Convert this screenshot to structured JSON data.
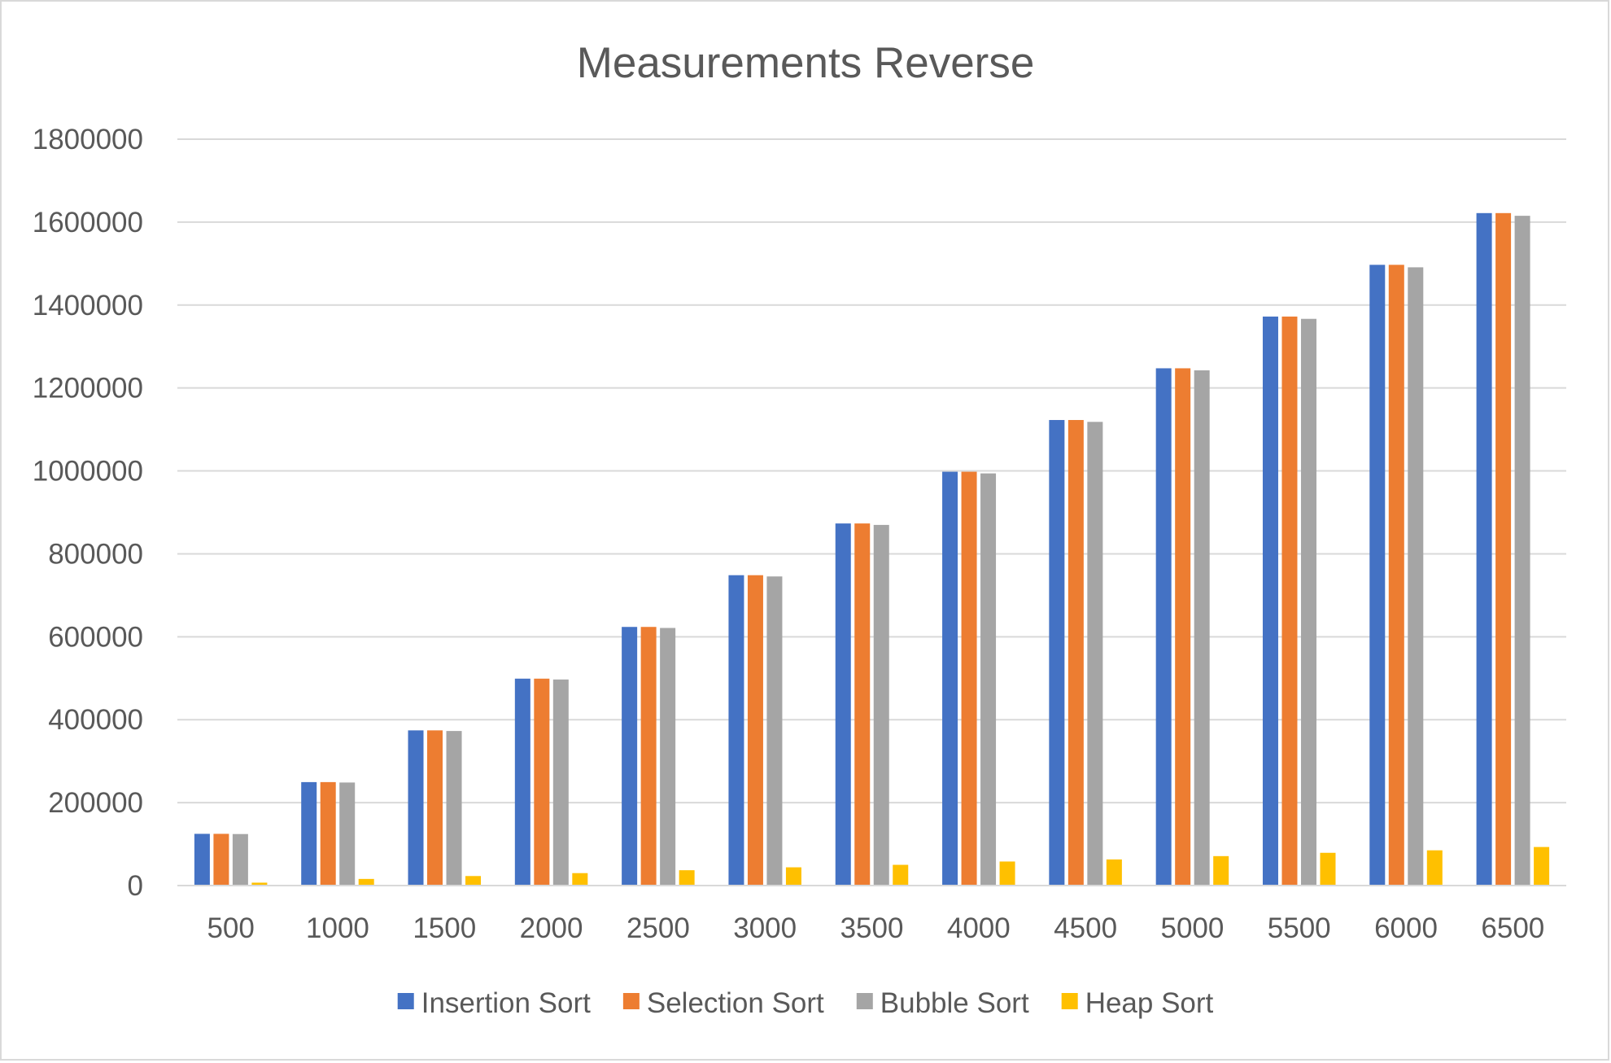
{
  "chart_data": {
    "type": "bar",
    "title": "Measurements Reverse",
    "xlabel": "",
    "ylabel": "",
    "categories": [
      "500",
      "1000",
      "1500",
      "2000",
      "2500",
      "3000",
      "3500",
      "4000",
      "4500",
      "5000",
      "5500",
      "6000",
      "6500"
    ],
    "series": [
      {
        "name": "Insertion Sort",
        "color": "#4472c4",
        "values": [
          124750,
          249500,
          374250,
          499000,
          623750,
          748500,
          873250,
          998000,
          1122750,
          1247500,
          1372250,
          1497000,
          1621750
        ]
      },
      {
        "name": "Selection Sort",
        "color": "#ed7d31",
        "values": [
          124750,
          249500,
          374250,
          499000,
          623750,
          748500,
          873250,
          998000,
          1122750,
          1247500,
          1372250,
          1497000,
          1621750
        ]
      },
      {
        "name": "Bubble Sort",
        "color": "#a5a5a5",
        "values": [
          124250,
          248500,
          372750,
          497000,
          621250,
          745500,
          869750,
          994000,
          1118250,
          1242500,
          1366750,
          1491000,
          1615250
        ]
      },
      {
        "name": "Heap Sort",
        "color": "#ffc000",
        "values": [
          7000,
          16000,
          23000,
          30000,
          37000,
          44000,
          50000,
          58000,
          63000,
          71000,
          79000,
          85000,
          93000
        ]
      }
    ],
    "ylim": [
      0,
      1800000
    ],
    "yticks": [
      "1800000",
      "1600000",
      "1400000",
      "1200000",
      "1000000",
      "800000",
      "600000",
      "400000",
      "200000",
      "0"
    ],
    "ytick_values": [
      1800000,
      1600000,
      1400000,
      1200000,
      1000000,
      800000,
      600000,
      400000,
      200000,
      0
    ],
    "grid": true,
    "gridline_color": "#d9d9d9",
    "legend_position": "bottom"
  }
}
